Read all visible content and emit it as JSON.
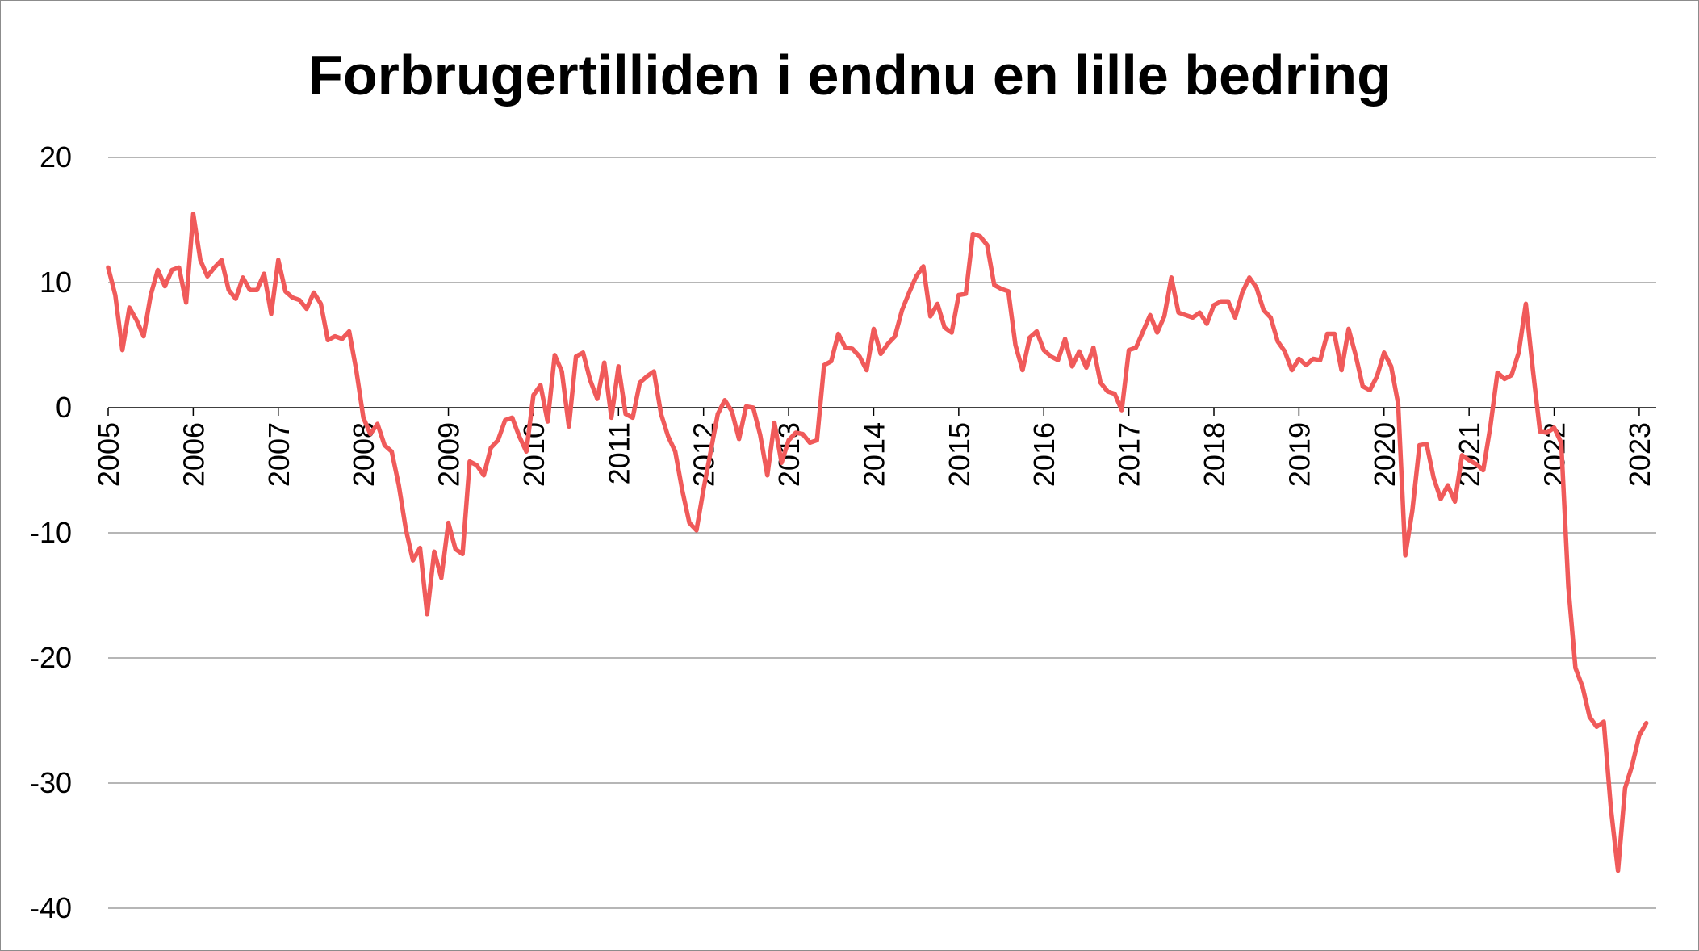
{
  "colors": {
    "line": "#f05a5a",
    "grid": "#8a8a8a",
    "axis": "#000000",
    "background": "#ffffff"
  },
  "chart_data": {
    "type": "line",
    "title": "Forbrugertilliden i endnu en lille bedring",
    "xlabel": "",
    "ylabel": "",
    "x_start": "2005-01",
    "x_frequency": "monthly",
    "xlim": [
      2005,
      2023.2
    ],
    "ylim": [
      -40,
      20
    ],
    "y_ticks": [
      20,
      10,
      0,
      -10,
      -20,
      -30,
      -40
    ],
    "x_tick_labels": [
      "2005",
      "2006",
      "2007",
      "2008",
      "2009",
      "2010",
      "2011",
      "2012",
      "2013",
      "2014",
      "2015",
      "2016",
      "2017",
      "2018",
      "2019",
      "2020",
      "2021",
      "2022",
      "2023"
    ],
    "grid": true,
    "legend": "none",
    "series": [
      {
        "values": [
          11.2,
          9,
          4.6,
          8,
          7,
          5.7,
          9,
          11,
          9.7,
          11,
          11.2,
          8.4,
          15.5,
          11.8,
          10.5,
          11.2,
          11.8,
          9.4,
          8.7,
          10.4,
          9.4,
          9.4,
          10.7,
          7.5,
          11.8,
          9.3,
          8.8,
          8.6,
          7.9,
          9.2,
          8.3,
          5.4,
          5.7,
          5.5,
          6.1,
          3,
          -0.8,
          -2.1,
          -1.3,
          -3,
          -3.5,
          -6.2,
          -9.7,
          -12.2,
          -11.2,
          -16.5,
          -11.5,
          -13.6,
          -9.2,
          -11.3,
          -11.7,
          -4.3,
          -4.6,
          -5.4,
          -3.2,
          -2.6,
          -1,
          -0.8,
          -2.3,
          -3.5,
          1,
          1.8,
          -1.1,
          4.2,
          2.9,
          -1.5,
          4.1,
          4.4,
          2.2,
          0.7,
          3.6,
          -0.8,
          3.3,
          -0.5,
          -0.8,
          2,
          2.5,
          2.9,
          -0.5,
          -2.3,
          -3.5,
          -6.6,
          -9.2,
          -9.8,
          -6.5,
          -3.5,
          -0.5,
          0.6,
          -0.3,
          -2.5,
          0.1,
          0,
          -2.2,
          -5.4,
          -1.2,
          -4.4,
          -2.6,
          -2,
          -2.1,
          -2.8,
          -2.6,
          3.4,
          3.7,
          5.9,
          4.8,
          4.7,
          4.1,
          3,
          6.3,
          4.3,
          5.1,
          5.7,
          7.8,
          9.2,
          10.5,
          11.3,
          7.3,
          8.3,
          6.4,
          6,
          9,
          9.1,
          13.9,
          13.7,
          13,
          9.8,
          9.5,
          9.3,
          5,
          3,
          5.6,
          6.1,
          4.6,
          4.1,
          3.8,
          5.5,
          3.3,
          4.5,
          3.2,
          4.8,
          2,
          1.3,
          1.1,
          -0.2,
          4.6,
          4.8,
          6.1,
          7.4,
          6,
          7.3,
          10.4,
          7.6,
          7.4,
          7.2,
          7.6,
          6.7,
          8.2,
          8.5,
          8.5,
          7.2,
          9.2,
          10.4,
          9.6,
          7.8,
          7.2,
          5.3,
          4.5,
          3,
          3.9,
          3.4,
          3.9,
          3.8,
          5.9,
          5.9,
          3,
          6.3,
          4.2,
          1.7,
          1.4,
          2.5,
          4.4,
          3.3,
          0.3,
          -11.8,
          -8.2,
          -3,
          -2.9,
          -5.6,
          -7.3,
          -6.2,
          -7.5,
          -3.8,
          -4.2,
          -4.5,
          -5,
          -1.5,
          2.8,
          2.3,
          2.6,
          4.4,
          8.3,
          3,
          -1.9,
          -2,
          -1.6,
          -2.8,
          -14.3,
          -20.8,
          -22.3,
          -24.7,
          -25.5,
          -25.1,
          -32,
          -37,
          -30.4,
          -28.6,
          -26.2,
          -25.2
        ]
      }
    ]
  }
}
